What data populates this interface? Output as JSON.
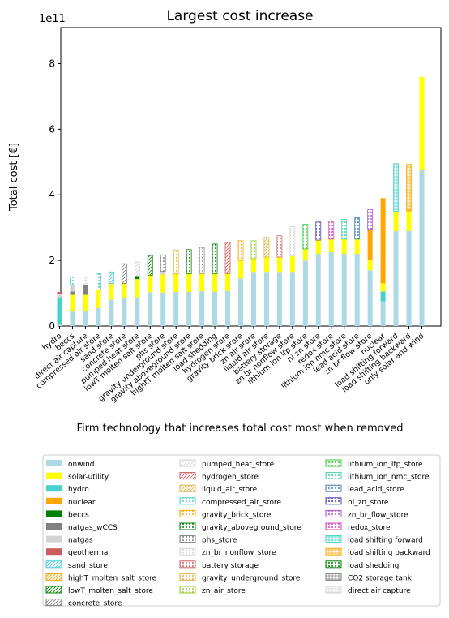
{
  "chart_data": {
    "type": "bar",
    "title": "Largest cost increase",
    "xlabel": "Firm technology that increases total cost most when removed",
    "ylabel": "Total cost [€]",
    "y_scale_label": "1e11",
    "ylim": [
      0,
      9.1
    ],
    "yticks": [
      0,
      2,
      4,
      6,
      8
    ],
    "categories": [
      "hydro",
      "beccs",
      "direct air capture",
      "compressed air store",
      "sand store",
      "concrete store",
      "pumped heat store",
      "lowT molten salt store",
      "phs store",
      "gravity underground store",
      "gravity aboveground store",
      "hightT molten salt store",
      "load shedding",
      "hydrogen store",
      "gravity brick store",
      "zn air store",
      "liquid air store",
      "battery storage",
      "zn br nonflow store",
      "lithium ion lfp store",
      "ni zn store",
      "redox store",
      "lithium ion nmc store",
      "lead acid store",
      "zn br flow store",
      "nuclear",
      "load shifting forward",
      "load shifting backward",
      "only solar and wind"
    ],
    "stack_order": [
      "onwind",
      "hydro",
      "solar-utility",
      "nuclear",
      "beccs",
      "natgas_wCCS",
      "natgas",
      "geothermal",
      "storage"
    ],
    "bars": [
      {
        "onwind": 0.07,
        "hydro": 0.8,
        "solar-utility": 0.0,
        "natgas": 0.1,
        "geothermal": 0.07
      },
      {
        "onwind": 0.45,
        "solar-utility": 0.5,
        "natgas_wCCS": 0.1,
        "natgas": 0.2,
        "storage": 0.25,
        "storage_tech": "beccs"
      },
      {
        "onwind": 0.45,
        "solar-utility": 0.5,
        "natgas_wCCS": 0.3,
        "storage": 0.25,
        "storage_tech": "direct air capture"
      },
      {
        "onwind": 0.55,
        "solar-utility": 0.55,
        "storage": 0.5,
        "storage_tech": "compressed_air_store"
      },
      {
        "onwind": 0.8,
        "solar-utility": 0.5,
        "storage": 0.35,
        "storage_tech": "sand_store"
      },
      {
        "onwind": 0.85,
        "solar-utility": 0.45,
        "storage": 0.6,
        "storage_tech": "concrete_store"
      },
      {
        "onwind": 0.88,
        "solar-utility": 0.55,
        "beccs": 0.1,
        "storage": 0.42,
        "storage_tech": "pumped_heat_store"
      },
      {
        "onwind": 1.03,
        "solar-utility": 0.52,
        "storage": 0.6,
        "storage_tech": "lowT_molten_salt_store"
      },
      {
        "onwind": 1.02,
        "solar-utility": 0.55,
        "natgas": 0.1,
        "storage": 0.5,
        "storage_tech": "phs_store"
      },
      {
        "onwind": 1.04,
        "solar-utility": 0.55,
        "storage": 0.73,
        "storage_tech": "gravity_underground_store"
      },
      {
        "onwind": 1.04,
        "solar-utility": 0.56,
        "storage": 0.73,
        "storage_tech": "gravity_aboveground_store"
      },
      {
        "onwind": 1.06,
        "solar-utility": 0.54,
        "storage": 0.8,
        "storage_tech": "hightT_molten_salt_store"
      },
      {
        "onwind": 1.05,
        "solar-utility": 0.55,
        "storage": 0.9,
        "storage_tech": "load shedding"
      },
      {
        "onwind": 1.07,
        "solar-utility": 0.53,
        "storage": 0.95,
        "storage_tech": "hydrogen_store"
      },
      {
        "onwind": 1.45,
        "solar-utility": 0.55,
        "storage": 0.6,
        "storage_tech": "gravity_brick_store"
      },
      {
        "onwind": 1.65,
        "solar-utility": 0.4,
        "storage": 0.55,
        "storage_tech": "zn_air_store"
      },
      {
        "onwind": 1.65,
        "solar-utility": 0.45,
        "storage": 0.6,
        "storage_tech": "liquid_air_store"
      },
      {
        "onwind": 1.65,
        "solar-utility": 0.45,
        "storage": 0.65,
        "storage_tech": "battery storage"
      },
      {
        "onwind": 1.65,
        "solar-utility": 0.48,
        "storage": 0.9,
        "storage_tech": "zn_br_nonflow_store"
      },
      {
        "onwind": 2.0,
        "solar-utility": 0.35,
        "storage": 0.75,
        "storage_tech": "lithium_ion_lfp_store"
      },
      {
        "onwind": 2.2,
        "solar-utility": 0.42,
        "storage": 0.55,
        "storage_tech": "ni_zn_store"
      },
      {
        "onwind": 2.25,
        "solar-utility": 0.4,
        "storage": 0.55,
        "storage_tech": "redox_store"
      },
      {
        "onwind": 2.2,
        "solar-utility": 0.45,
        "storage": 0.6,
        "storage_tech": "lithium_ion_nmc_store"
      },
      {
        "onwind": 2.2,
        "solar-utility": 0.45,
        "storage": 0.65,
        "storage_tech": "lead_acid_store"
      },
      {
        "onwind": 1.7,
        "solar-utility": 0.3,
        "nuclear": 0.95,
        "storage": 0.6,
        "storage_tech": "zn_br_flow_store"
      },
      {
        "onwind": 0.75,
        "solar-utility": 0.25,
        "nuclear": 2.6,
        "hydro": 0.3
      },
      {
        "onwind": 2.9,
        "solar-utility": 0.6,
        "storage": 1.45,
        "storage_tech": "load shifting forward"
      },
      {
        "onwind": 2.9,
        "solar-utility": 0.6,
        "nuclear": 0.03,
        "storage": 1.4,
        "storage_tech": "load shifting backward"
      },
      {
        "onwind": 4.75,
        "solar-utility": 2.85
      }
    ],
    "legend_placement": "below",
    "legend": [
      [
        "onwind",
        "solar-utility",
        "hydro",
        "nuclear",
        "beccs",
        "natgas_wCCS",
        "natgas",
        "geothermal",
        "sand_store",
        "highT_molten_salt_store",
        "lowT_molten_salt_store",
        "concrete_store"
      ],
      [
        "pumped_heat_store",
        "hydrogen_store",
        "liquid_air_store",
        "compressed_air_store",
        "gravity_brick_store",
        "gravity_aboveground_store",
        "phs_store",
        "zn_br_nonflow_store",
        "battery storage",
        "gravity_underground_store",
        "zn_air_store"
      ],
      [
        "lithium_ion_lfp_store",
        "lithium_ion_nmc_store",
        "lead_acid_store",
        "ni_zn_store",
        "zn_br_flow_store",
        "redox_store",
        "load shifting forward",
        "load shifting backward",
        "load shedding",
        "CO2 storage tank",
        "direct air capture"
      ]
    ],
    "colors": {
      "onwind": "#add8e6",
      "solar-utility": "#ffff00",
      "hydro": "#48d1cc",
      "nuclear": "#ffa500",
      "beccs": "#008000",
      "natgas_wCCS": "#808080",
      "natgas": "#d3d3d3",
      "geothermal": "#cd5c5c",
      "sand_store": "#48c9d8",
      "highT_molten_salt_store": "#f4a300",
      "lowT_molten_salt_store": "#008000",
      "concrete_store": "#808080",
      "pumped_heat_store": "#d3d3d3",
      "hydrogen_store": "#cd5c5c",
      "liquid_air_store": "#e0b040",
      "compressed_air_store": "#48d1cc",
      "gravity_brick_store": "#ffa500",
      "gravity_aboveground_store": "#008000",
      "phs_store": "#808080",
      "zn_br_nonflow_store": "#d3d3d3",
      "battery storage": "#cd5c5c",
      "gravity_underground_store": "#e0b040",
      "zn_air_store": "#9acd32",
      "lithium_ion_lfp_store": "#32cd32",
      "lithium_ion_nmc_store": "#48d1aa",
      "lead_acid_store": "#4682b4",
      "ni_zn_store": "#4b3fb0",
      "zn_br_flow_store": "#ba55d3",
      "redox_store": "#d048c0",
      "load shifting forward": "#48d1cc",
      "load shifting backward": "#ffa500",
      "load shedding": "#008000",
      "CO2 storage tank": "#808080",
      "direct air capture": "#d3d3d3",
      "beccs_storage": "#48d1cc"
    },
    "hatch_styles": {
      "sand_store": "diag",
      "highT_molten_salt_store": "diag",
      "lowT_molten_salt_store": "diag",
      "concrete_store": "diag",
      "pumped_heat_store": "diag",
      "hydrogen_store": "diag",
      "liquid_air_store": "diag",
      "compressed_air_store": "dots",
      "gravity_brick_store": "dots",
      "gravity_aboveground_store": "dots",
      "phs_store": "dots",
      "zn_br_nonflow_store": "dots",
      "battery storage": "dots",
      "gravity_underground_store": "dots",
      "zn_air_store": "dots",
      "lithium_ion_lfp_store": "dots",
      "lithium_ion_nmc_store": "dots",
      "lead_acid_store": "dots",
      "ni_zn_store": "dots",
      "zn_br_flow_store": "dots",
      "redox_store": "dots",
      "load shifting forward": "grid",
      "load shifting backward": "grid",
      "load shedding": "dots",
      "CO2 storage tank": "grid",
      "direct air capture": "grid",
      "beccs": "dots"
    }
  }
}
